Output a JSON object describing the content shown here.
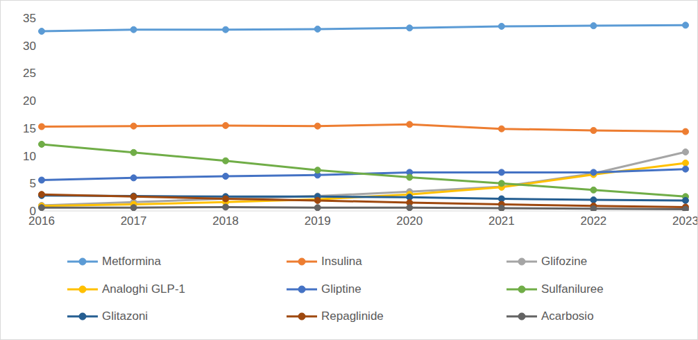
{
  "chart_data": {
    "type": "line",
    "categories": [
      "2016",
      "2017",
      "2018",
      "2019",
      "2020",
      "2021",
      "2022",
      "2023"
    ],
    "ylim": [
      0,
      35
    ],
    "yticks": [
      0,
      5,
      10,
      15,
      20,
      25,
      30,
      35
    ],
    "grid": false,
    "legend": "bottom",
    "marker": "circle",
    "series": [
      {
        "name": "Metformina",
        "color": "#5B9BD5",
        "values": [
          32.6,
          32.9,
          32.9,
          33.0,
          33.2,
          33.5,
          33.6,
          33.7
        ]
      },
      {
        "name": "Insulina",
        "color": "#ED7D31",
        "values": [
          15.3,
          15.4,
          15.5,
          15.4,
          15.7,
          14.9,
          14.6,
          14.4
        ]
      },
      {
        "name": "Glifozine",
        "color": "#A5A5A5",
        "values": [
          1.0,
          1.6,
          2.2,
          2.7,
          3.5,
          4.4,
          6.8,
          10.7
        ]
      },
      {
        "name": "Analoghi GLP-1",
        "color": "#FFC000",
        "values": [
          0.9,
          1.2,
          1.6,
          2.1,
          3.0,
          4.3,
          6.6,
          8.7
        ]
      },
      {
        "name": "Gliptine",
        "color": "#4472C4",
        "values": [
          5.6,
          6.0,
          6.3,
          6.5,
          7.0,
          7.0,
          7.0,
          7.6
        ]
      },
      {
        "name": "Sulfaniluree",
        "color": "#70AD47",
        "values": [
          12.1,
          10.6,
          9.1,
          7.4,
          6.1,
          5.0,
          3.8,
          2.6
        ]
      },
      {
        "name": "Glitazoni",
        "color": "#255E91",
        "values": [
          2.8,
          2.7,
          2.6,
          2.6,
          2.5,
          2.2,
          2.0,
          1.9
        ]
      },
      {
        "name": "Repaglinide",
        "color": "#9E480E",
        "values": [
          3.0,
          2.6,
          2.2,
          1.9,
          1.5,
          1.2,
          0.9,
          0.7
        ]
      },
      {
        "name": "Acarbosio",
        "color": "#636363",
        "values": [
          0.6,
          0.6,
          0.7,
          0.6,
          0.6,
          0.5,
          0.4,
          0.3
        ]
      }
    ]
  }
}
